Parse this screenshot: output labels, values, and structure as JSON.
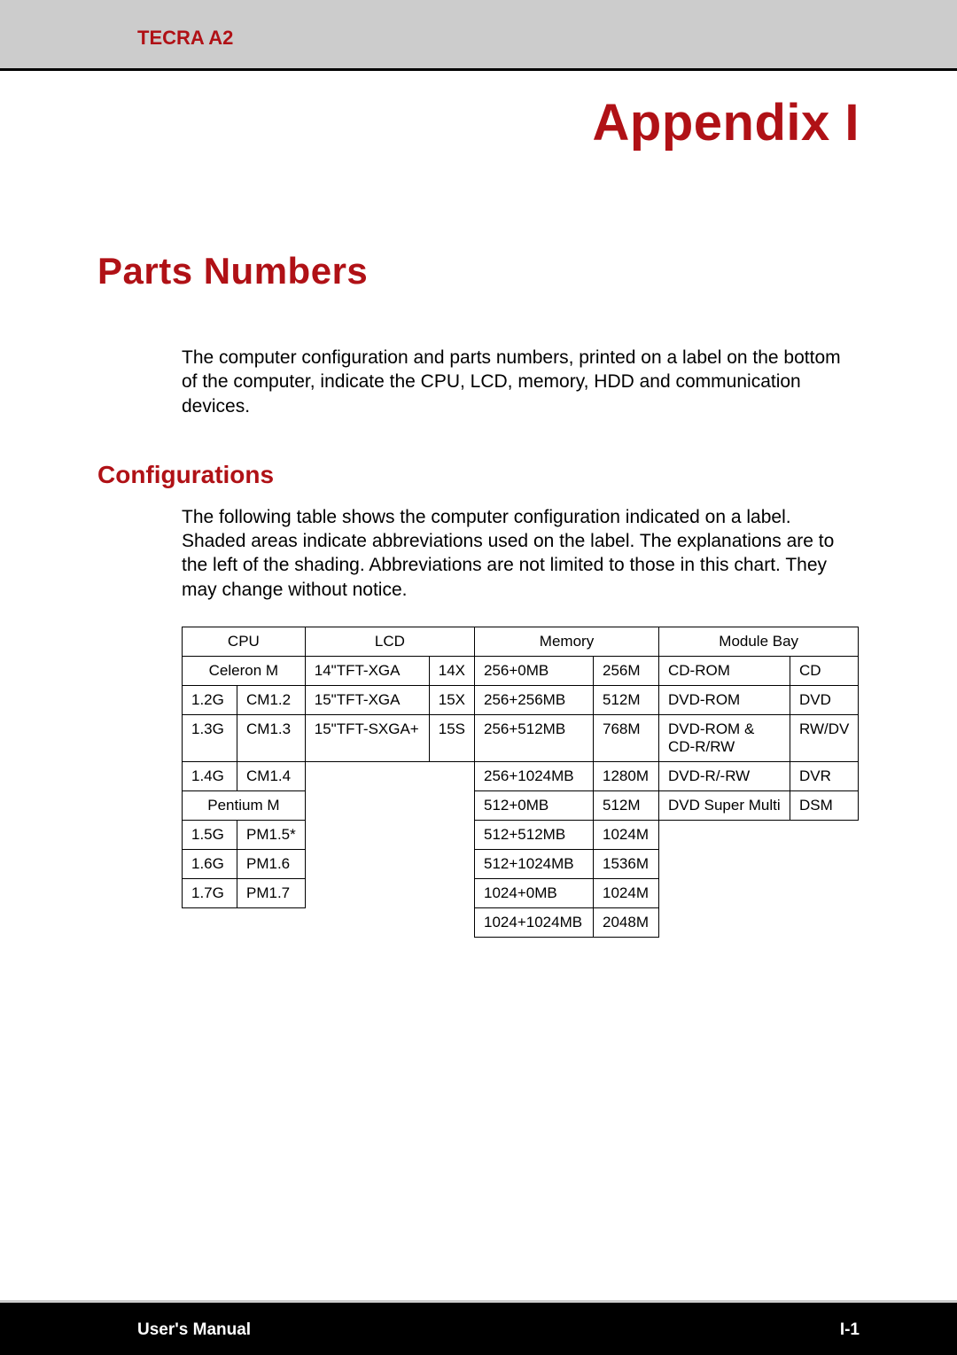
{
  "header": {
    "product": "TECRA A2",
    "appendix": "Appendix I"
  },
  "section": {
    "title": "Parts Numbers",
    "intro": "The computer configuration and parts numbers, printed on a label on the bottom of the computer, indicate the CPU, LCD, memory, HDD and communication devices."
  },
  "subsection": {
    "title": "Configurations",
    "para": "The following table shows the computer configuration indicated on a label. Shaded areas indicate abbreviations used on the label. The explanations are to the left of the shading. Abbreviations are not limited to those in this chart. They may change without notice."
  },
  "table": {
    "headers": {
      "cpu": "CPU",
      "lcd": "LCD",
      "memory": "Memory",
      "module": "Module Bay"
    },
    "cpu_sub1": "Celeron M",
    "cpu_rows1": [
      [
        "1.2G",
        "CM1.2"
      ],
      [
        "1.3G",
        "CM1.3"
      ],
      [
        "1.4G",
        "CM1.4"
      ]
    ],
    "cpu_sub2": "Pentium M",
    "cpu_rows2": [
      [
        "1.5G",
        "PM1.5*"
      ],
      [
        "1.6G",
        "PM1.6"
      ],
      [
        "1.7G",
        "PM1.7"
      ]
    ],
    "lcd_rows": [
      [
        "14\"TFT-XGA",
        "14X"
      ],
      [
        "15\"TFT-XGA",
        "15X"
      ],
      [
        "15\"TFT-SXGA+",
        "15S"
      ]
    ],
    "memory_rows": [
      [
        "256+0MB",
        "256M"
      ],
      [
        "256+256MB",
        "512M"
      ],
      [
        "256+512MB",
        "768M"
      ],
      [
        "256+1024MB",
        "1280M"
      ],
      [
        "512+0MB",
        "512M"
      ],
      [
        "512+512MB",
        "1024M"
      ],
      [
        "512+1024MB",
        "1536M"
      ],
      [
        "1024+0MB",
        "1024M"
      ],
      [
        "1024+1024MB",
        "2048M"
      ]
    ],
    "module_rows": [
      [
        "CD-ROM",
        "CD"
      ],
      [
        "DVD-ROM",
        "DVD"
      ],
      [
        "DVD-ROM & CD-R/RW",
        "RW/DV"
      ],
      [
        "DVD-R/-RW",
        "DVR"
      ],
      [
        "DVD Super Multi",
        "DSM"
      ]
    ]
  },
  "footer": {
    "left": "User's Manual",
    "right": "I-1"
  },
  "colors": {
    "accent": "#b01116",
    "header_bg": "#cccccc",
    "footer_bg": "#000000",
    "text": "#000000",
    "footer_text": "#ffffff"
  }
}
